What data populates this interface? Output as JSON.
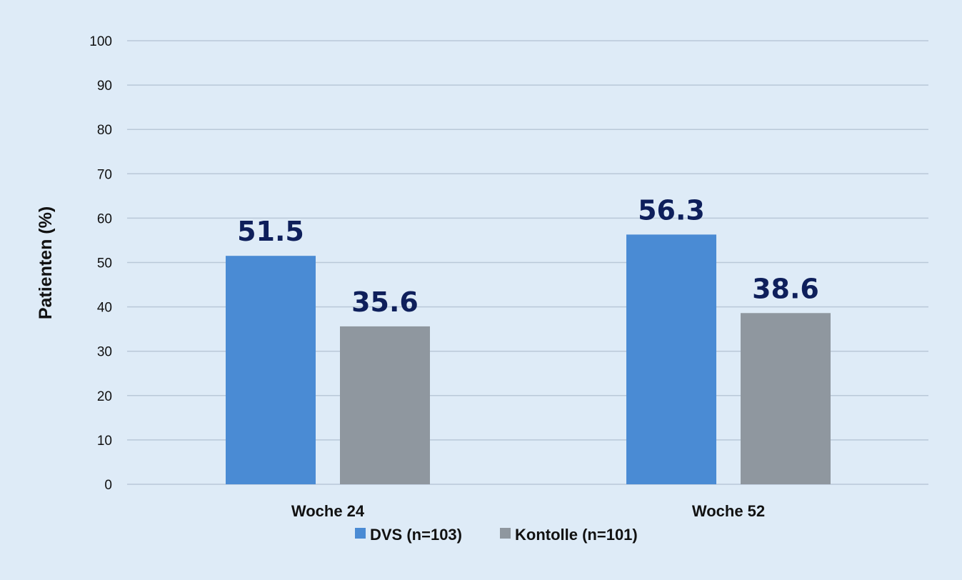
{
  "chart_data": {
    "type": "bar",
    "title": "",
    "xlabel": "",
    "ylabel": "Patienten (%)",
    "categories": [
      "Woche 24",
      "Woche 52"
    ],
    "series": [
      {
        "name": "DVS (n=103)",
        "values": [
          51.5,
          56.3
        ],
        "color": "#4a8bd4",
        "value_labels": [
          "51.5",
          "56.3"
        ]
      },
      {
        "name": "Kontolle (n=101)",
        "values": [
          35.6,
          38.6
        ],
        "color": "#8f979f",
        "value_labels": [
          "35.6",
          "38.6"
        ]
      }
    ],
    "ylim": [
      0,
      100
    ],
    "yticks": [
      "0",
      "10",
      "20",
      "30",
      "40",
      "50",
      "60",
      "70",
      "80",
      "90",
      "100"
    ],
    "grid": true,
    "legend_position": "bottom",
    "colors": {
      "background": "#deebf7",
      "gridline": "#b9c8d8",
      "data_label": "#0e1f5b"
    }
  }
}
